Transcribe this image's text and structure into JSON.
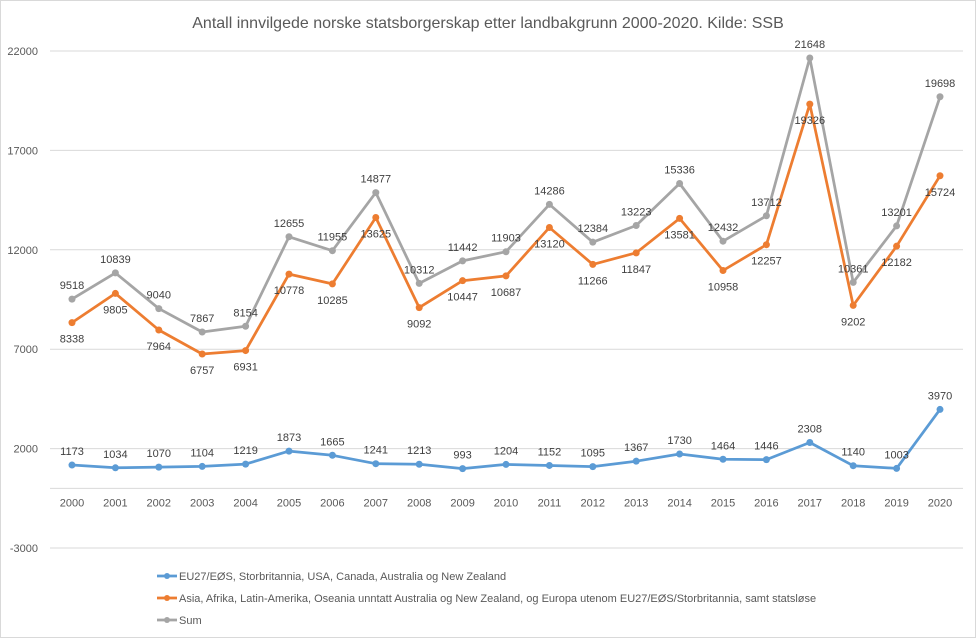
{
  "chart_data": {
    "type": "line",
    "title": "Antall innvilgede norske statsborgerskap etter landbakgrunn 2000-2020. Kilde: SSB",
    "xlabel": "",
    "ylabel": "",
    "ylim": [
      -3000,
      22000
    ],
    "yticks": [
      22000,
      17000,
      12000,
      7000,
      2000,
      -3000
    ],
    "ytick_labels": [
      "22000",
      "17000",
      "12000",
      "7000",
      "2000",
      "-3000"
    ],
    "grid": true,
    "legend_position": "bottom-left",
    "data_labels": true,
    "categories": [
      "2000",
      "2001",
      "2002",
      "2003",
      "2004",
      "2005",
      "2006",
      "2007",
      "2008",
      "2009",
      "2010",
      "2011",
      "2012",
      "2013",
      "2014",
      "2015",
      "2016",
      "2017",
      "2018",
      "2019",
      "2020"
    ],
    "series": [
      {
        "name": "EU27/EØS, Storbritannia, USA, Canada, Australia og New Zealand",
        "color": "#5b9bd5",
        "label_position": "above",
        "values": [
          1173,
          1034,
          1070,
          1104,
          1219,
          1873,
          1665,
          1241,
          1213,
          993,
          1204,
          1152,
          1095,
          1367,
          1730,
          1464,
          1446,
          2308,
          1140,
          1003,
          3970
        ]
      },
      {
        "name": "Asia, Afrika, Latin-Amerika, Oseania unntatt Australia og New Zealand, og Europa utenom EU27/EØS/Storbritannia, samt statsløse",
        "color": "#ed7d31",
        "label_position": "below",
        "values": [
          8338,
          9805,
          7964,
          6757,
          6931,
          10778,
          10285,
          13625,
          9092,
          10447,
          10687,
          13120,
          11266,
          11847,
          13581,
          10958,
          12257,
          19326,
          9202,
          12182,
          15724
        ]
      },
      {
        "name": "Sum",
        "color": "#a5a5a5",
        "label_position": "above",
        "values": [
          9518,
          10839,
          9040,
          7867,
          8154,
          12655,
          11955,
          14877,
          10312,
          11442,
          11903,
          14286,
          12384,
          13223,
          15336,
          12432,
          13712,
          21648,
          10361,
          13201,
          19698
        ]
      }
    ]
  }
}
